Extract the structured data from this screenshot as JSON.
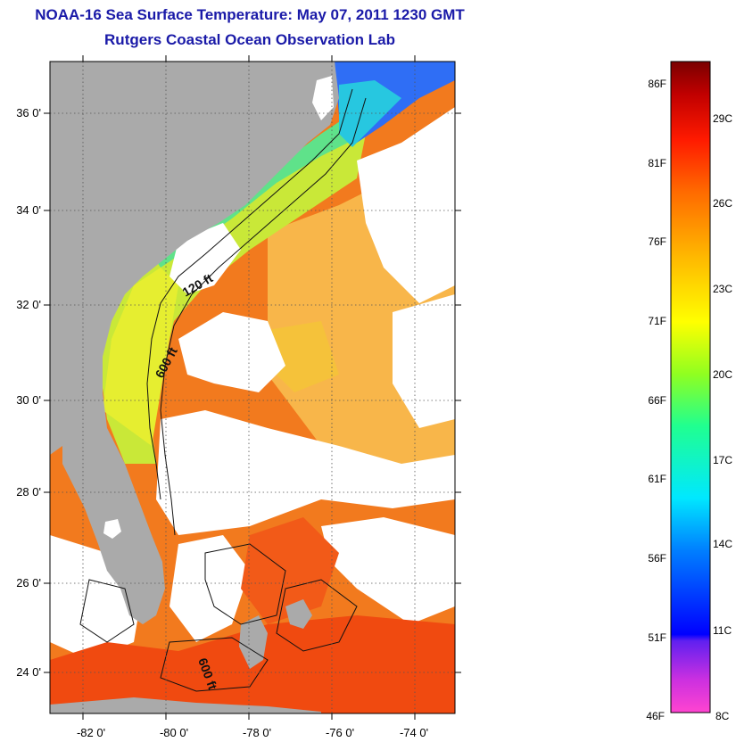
{
  "header": {
    "title": "NOAA-16 Sea Surface Temperature:  May 07, 2011 1230 GMT",
    "subtitle": "Rutgers Coastal Ocean Observation Lab"
  },
  "map": {
    "lat_labels": [
      "36 0'",
      "34 0'",
      "32 0'",
      "30 0'",
      "28 0'",
      "26 0'",
      "24 0'"
    ],
    "lon_labels": [
      "-82 0'",
      "-80 0'",
      "-78 0'",
      "-76 0'",
      "-74 0'"
    ],
    "contour_labels": [
      "120 ft",
      "600 ft",
      "600 ft"
    ],
    "colors": {
      "land": "#aaaaaa",
      "cloud": "#ffffff",
      "warm_ocean": "#f06a10",
      "mid_ocean": "#f7c930",
      "cool_ocean": "#56e08c",
      "cold_ocean": "#2a6bff"
    }
  },
  "colorbar": {
    "fahrenheit_labels": [
      "86F",
      "81F",
      "76F",
      "71F",
      "66F",
      "61F",
      "56F",
      "51F",
      "46F"
    ],
    "celsius_labels": [
      "29C",
      "26C",
      "23C",
      "20C",
      "17C",
      "14C",
      "11C",
      "8C"
    ],
    "range_f": [
      46,
      88
    ],
    "gradient": [
      "#ff44d0",
      "#a020f0",
      "#0000ff",
      "#0070ff",
      "#00e0ff",
      "#00ff90",
      "#80ff00",
      "#ffff00",
      "#ffb000",
      "#ff6000",
      "#ff0000",
      "#c00000",
      "#800000"
    ]
  }
}
